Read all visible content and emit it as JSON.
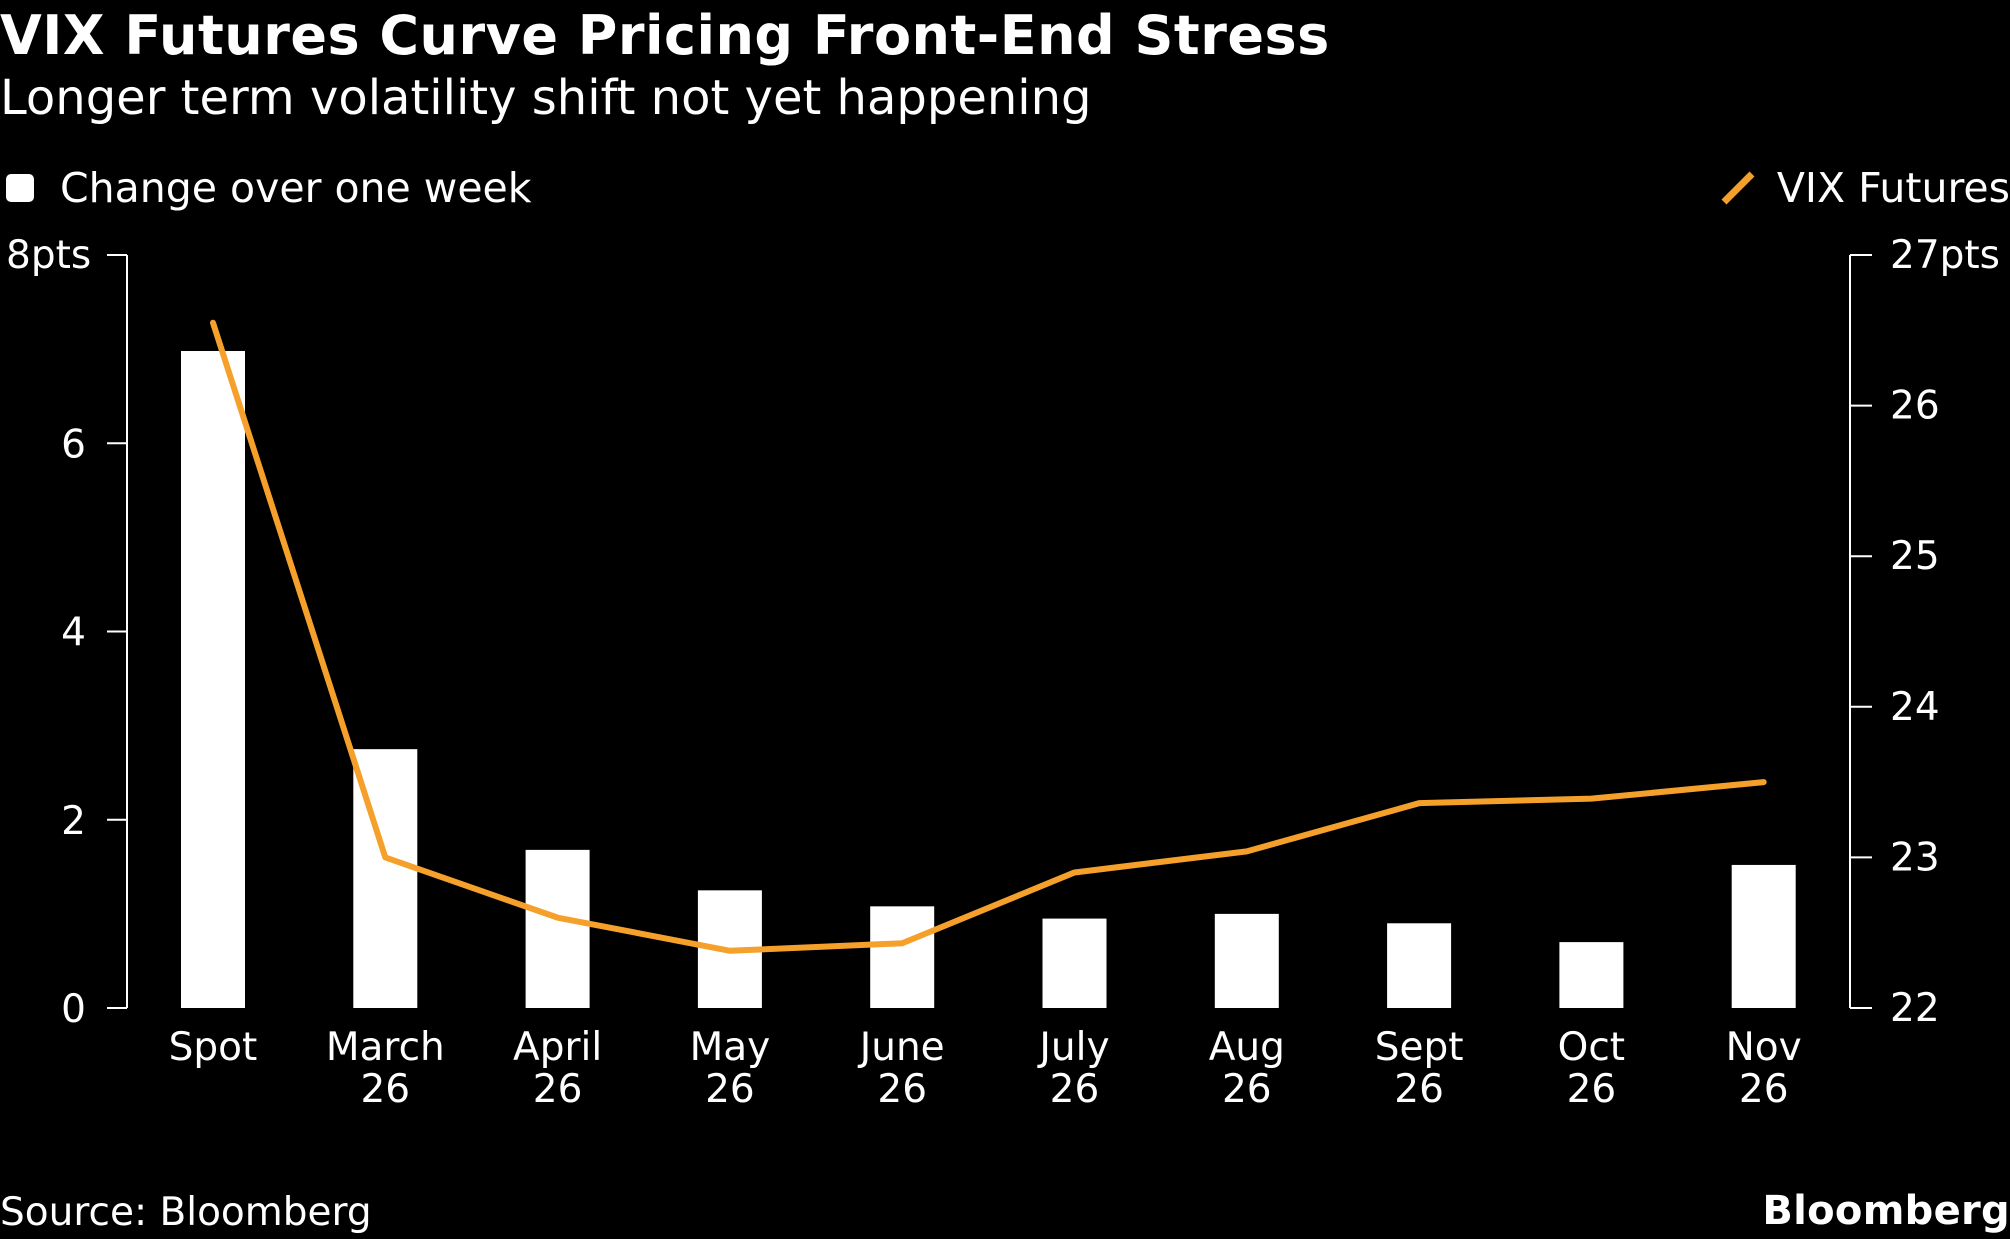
{
  "header": {
    "title": "VIX Futures Curve Pricing Front-End Stress",
    "subtitle": "Longer term volatility shift not yet happening"
  },
  "legend": {
    "bars_label": "Change over one week",
    "line_label": "VIX Futures"
  },
  "footer": {
    "source": "Source: Bloomberg",
    "brand": "Bloomberg"
  },
  "colors": {
    "background": "#000000",
    "bars": "#ffffff",
    "line": "#f5a02b",
    "axis": "#ffffff"
  },
  "chart_data": {
    "type": "bar",
    "categories": [
      [
        "Spot"
      ],
      [
        "March",
        "26"
      ],
      [
        "April",
        "26"
      ],
      [
        "May",
        "26"
      ],
      [
        "June",
        "26"
      ],
      [
        "July",
        "26"
      ],
      [
        "Aug",
        "26"
      ],
      [
        "Sept",
        "26"
      ],
      [
        "Oct",
        "26"
      ],
      [
        "Nov",
        "26"
      ]
    ],
    "series": [
      {
        "name": "Change over one week",
        "type": "bar",
        "axis": "left",
        "values": [
          6.98,
          2.75,
          1.68,
          1.25,
          1.08,
          0.95,
          1.0,
          0.9,
          0.7,
          1.52
        ]
      },
      {
        "name": "VIX Futures",
        "type": "line",
        "axis": "right",
        "values": [
          26.55,
          23.0,
          22.6,
          22.38,
          22.43,
          22.9,
          23.04,
          23.36,
          23.39,
          23.5
        ]
      }
    ],
    "y_left": {
      "ylim": [
        0,
        8
      ],
      "ticks": [
        0,
        2,
        4,
        6,
        8
      ],
      "tick_labels": [
        "0",
        "2",
        "4",
        "6",
        "8pts"
      ]
    },
    "y_right": {
      "ylim": [
        22,
        27
      ],
      "ticks": [
        22,
        23,
        24,
        25,
        26,
        27
      ],
      "tick_labels": [
        "22",
        "23",
        "24",
        "25",
        "26",
        "27pts"
      ]
    },
    "grid": false
  }
}
